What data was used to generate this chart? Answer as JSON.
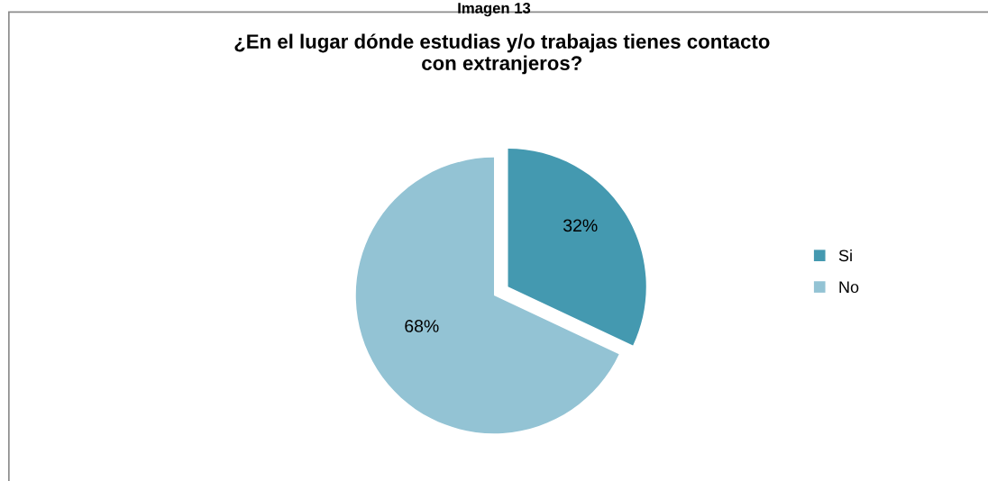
{
  "chart_data": {
    "type": "pie",
    "title": "¿En el lugar dónde estudias y/o trabajas tienes contacto\ncon extranjeros?",
    "categories": [
      "Si",
      "No"
    ],
    "values": [
      32,
      68
    ],
    "colors": [
      "#4499b0",
      "#93c3d4"
    ],
    "value_labels": [
      "32%",
      "68%"
    ],
    "legend": "right",
    "annotations": [
      "Imagen 13"
    ]
  }
}
